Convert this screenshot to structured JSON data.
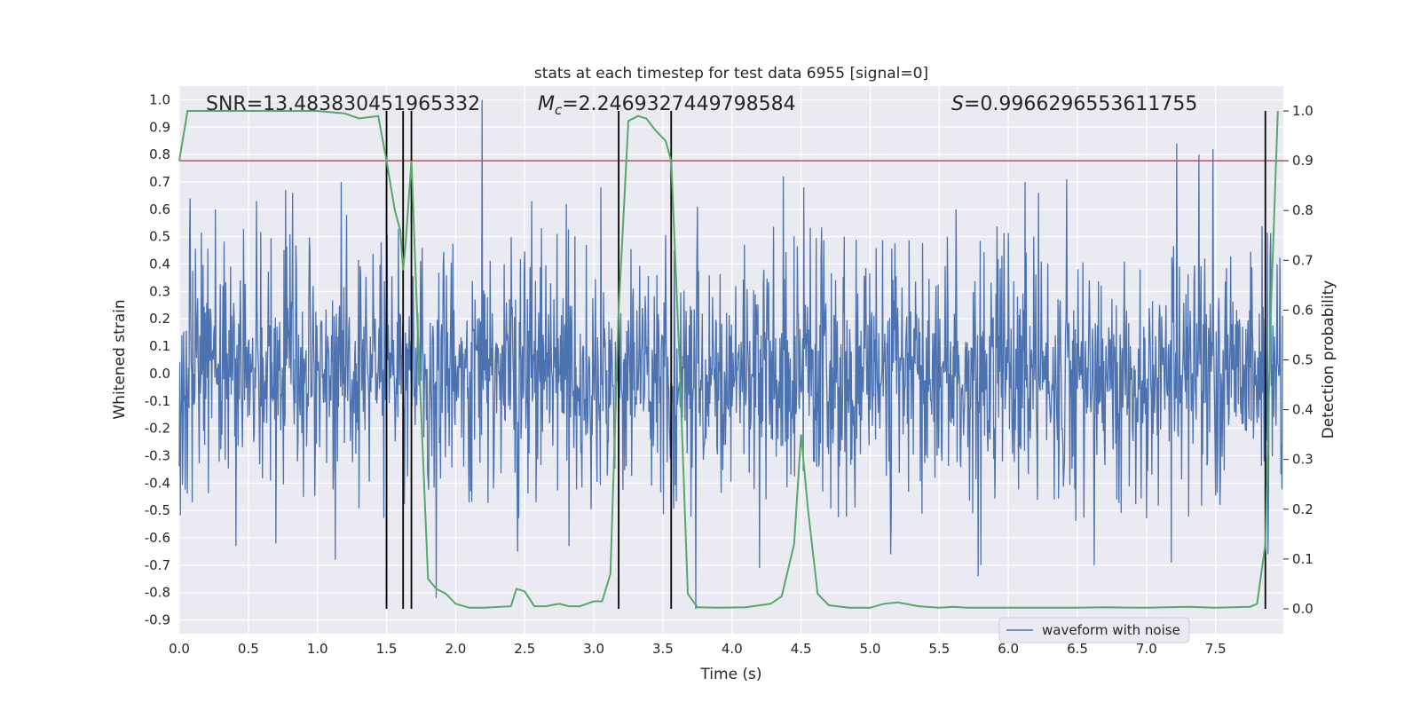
{
  "chart_data": {
    "type": "line",
    "title": "stats at each timestep for test data 6955 [signal=0]",
    "xlabel": "Time (s)",
    "ylabel_left": "Whitened strain",
    "ylabel_right": "Detection probability",
    "xlim": [
      0.0,
      7.99
    ],
    "ylim_left": [
      -0.95,
      1.05
    ],
    "ylim_right": [
      -0.05,
      1.05
    ],
    "x_ticks": [
      0,
      0.5,
      1,
      1.5,
      2,
      2.5,
      3,
      3.5,
      4,
      4.5,
      5,
      5.5,
      6,
      6.5,
      7,
      7.5
    ],
    "x_tick_labels": [
      "0.0",
      "0.5",
      "1.0",
      "1.5",
      "2.0",
      "2.5",
      "3.0",
      "3.5",
      "4.0",
      "4.5",
      "5.0",
      "5.5",
      "6.0",
      "6.5",
      "7.0",
      "7.5"
    ],
    "y_left_ticks": [
      1.0,
      0.9,
      0.8,
      0.7,
      0.6,
      0.5,
      0.4,
      0.3,
      0.2,
      0.1,
      0.0,
      -0.1,
      -0.2,
      -0.3,
      -0.4,
      -0.5,
      -0.6,
      -0.7,
      -0.8,
      -0.9
    ],
    "y_left_tick_labels": [
      "1.0",
      "0.9",
      "0.8",
      "0.7",
      "0.6",
      "0.5",
      "0.4",
      "0.3",
      "0.2",
      "0.1",
      "0.0",
      "-0.1",
      "-0.2",
      "-0.3",
      "-0.4",
      "-0.5",
      "-0.6",
      "-0.7",
      "-0.8",
      "-0.9"
    ],
    "y_right_ticks": [
      1.0,
      0.9,
      0.8,
      0.7,
      0.6,
      0.5,
      0.4,
      0.3,
      0.2,
      0.1,
      0.0
    ],
    "y_right_tick_labels": [
      "1.0",
      "0.9",
      "0.8",
      "0.7",
      "0.6",
      "0.5",
      "0.4",
      "0.3",
      "0.2",
      "0.1",
      "0.0"
    ],
    "grid": true,
    "legend": {
      "entries": [
        "waveform with noise"
      ],
      "location": "lower-right"
    },
    "annotations": {
      "snr": "SNR=13.483830451965332",
      "mc_symbol": "M",
      "mc_subscript": "c",
      "mc_value": "=2.2469327449798584",
      "s_symbol": "S",
      "s_value": "=0.9966296553611755"
    },
    "threshold": {
      "axis": "right",
      "value": 0.9,
      "color": "#c44e52"
    },
    "vertical_lines": [
      1.5,
      1.62,
      1.68,
      3.18,
      3.56,
      7.86
    ],
    "series": [
      {
        "name": "waveform with noise",
        "axis": "left",
        "color": "#4c72b0",
        "kind": "noise",
        "fs": 256,
        "core_amplitude": 0.29,
        "peak_spikes": [
          [
            0.08,
            0.64
          ],
          [
            0.26,
            0.6
          ],
          [
            0.56,
            0.63
          ],
          [
            0.77,
            0.67
          ],
          [
            0.82,
            0.66
          ],
          [
            1.17,
            0.7
          ],
          [
            1.46,
            0.48
          ],
          [
            2.19,
            1.0
          ],
          [
            2.55,
            0.63
          ],
          [
            2.8,
            0.62
          ],
          [
            3.05,
            0.68
          ],
          [
            3.75,
            0.61
          ],
          [
            4.2,
            0.68
          ],
          [
            4.37,
            0.72
          ],
          [
            4.52,
            0.68
          ],
          [
            5.62,
            0.6
          ],
          [
            6.12,
            0.7
          ],
          [
            6.22,
            0.66
          ],
          [
            6.42,
            0.71
          ],
          [
            7.22,
            0.84
          ],
          [
            7.38,
            0.8
          ],
          [
            7.48,
            0.82
          ]
        ],
        "trough_spikes": [
          [
            0.41,
            -0.63
          ],
          [
            0.7,
            -0.62
          ],
          [
            1.13,
            -0.68
          ],
          [
            1.86,
            -0.82
          ],
          [
            2.45,
            -0.65
          ],
          [
            2.82,
            -0.63
          ],
          [
            3.74,
            -0.86
          ],
          [
            4.2,
            -0.71
          ],
          [
            5.15,
            -0.66
          ],
          [
            5.78,
            -0.74
          ],
          [
            5.8,
            -0.7
          ],
          [
            6.62,
            -0.7
          ],
          [
            7.18,
            -0.69
          ],
          [
            7.88,
            -0.66
          ]
        ]
      },
      {
        "name": "detection probability",
        "axis": "right",
        "color": "#55a868",
        "x": [
          0.0,
          0.06,
          0.5,
          1.0,
          1.2,
          1.3,
          1.44,
          1.5,
          1.56,
          1.6,
          1.62,
          1.64,
          1.68,
          1.72,
          1.8,
          1.86,
          1.93,
          2.0,
          2.1,
          2.2,
          2.4,
          2.44,
          2.5,
          2.57,
          2.65,
          2.75,
          2.82,
          2.9,
          3.0,
          3.06,
          3.12,
          3.18,
          3.25,
          3.32,
          3.38,
          3.45,
          3.52,
          3.56,
          3.62,
          3.68,
          3.75,
          3.9,
          4.1,
          4.28,
          4.36,
          4.45,
          4.5,
          4.55,
          4.62,
          4.7,
          4.85,
          5.0,
          5.1,
          5.2,
          5.35,
          5.5,
          5.6,
          5.7,
          5.8,
          6.0,
          6.5,
          6.7,
          7.0,
          7.3,
          7.5,
          7.75,
          7.8,
          7.86,
          7.9,
          7.95
        ],
        "y": [
          0.9,
          1.0,
          1.0,
          1.0,
          0.995,
          0.985,
          0.99,
          0.9,
          0.8,
          0.76,
          0.68,
          0.74,
          0.9,
          0.6,
          0.06,
          0.04,
          0.03,
          0.01,
          0.002,
          0.002,
          0.005,
          0.04,
          0.035,
          0.005,
          0.005,
          0.01,
          0.005,
          0.005,
          0.015,
          0.015,
          0.07,
          0.6,
          0.98,
          0.99,
          0.985,
          0.96,
          0.94,
          0.9,
          0.5,
          0.03,
          0.003,
          0.002,
          0.003,
          0.01,
          0.025,
          0.13,
          0.35,
          0.2,
          0.03,
          0.007,
          0.002,
          0.002,
          0.01,
          0.013,
          0.005,
          0.002,
          0.004,
          0.002,
          0.002,
          0.002,
          0.002,
          0.003,
          0.002,
          0.004,
          0.002,
          0.004,
          0.01,
          0.13,
          0.6,
          1.0
        ]
      }
    ]
  }
}
